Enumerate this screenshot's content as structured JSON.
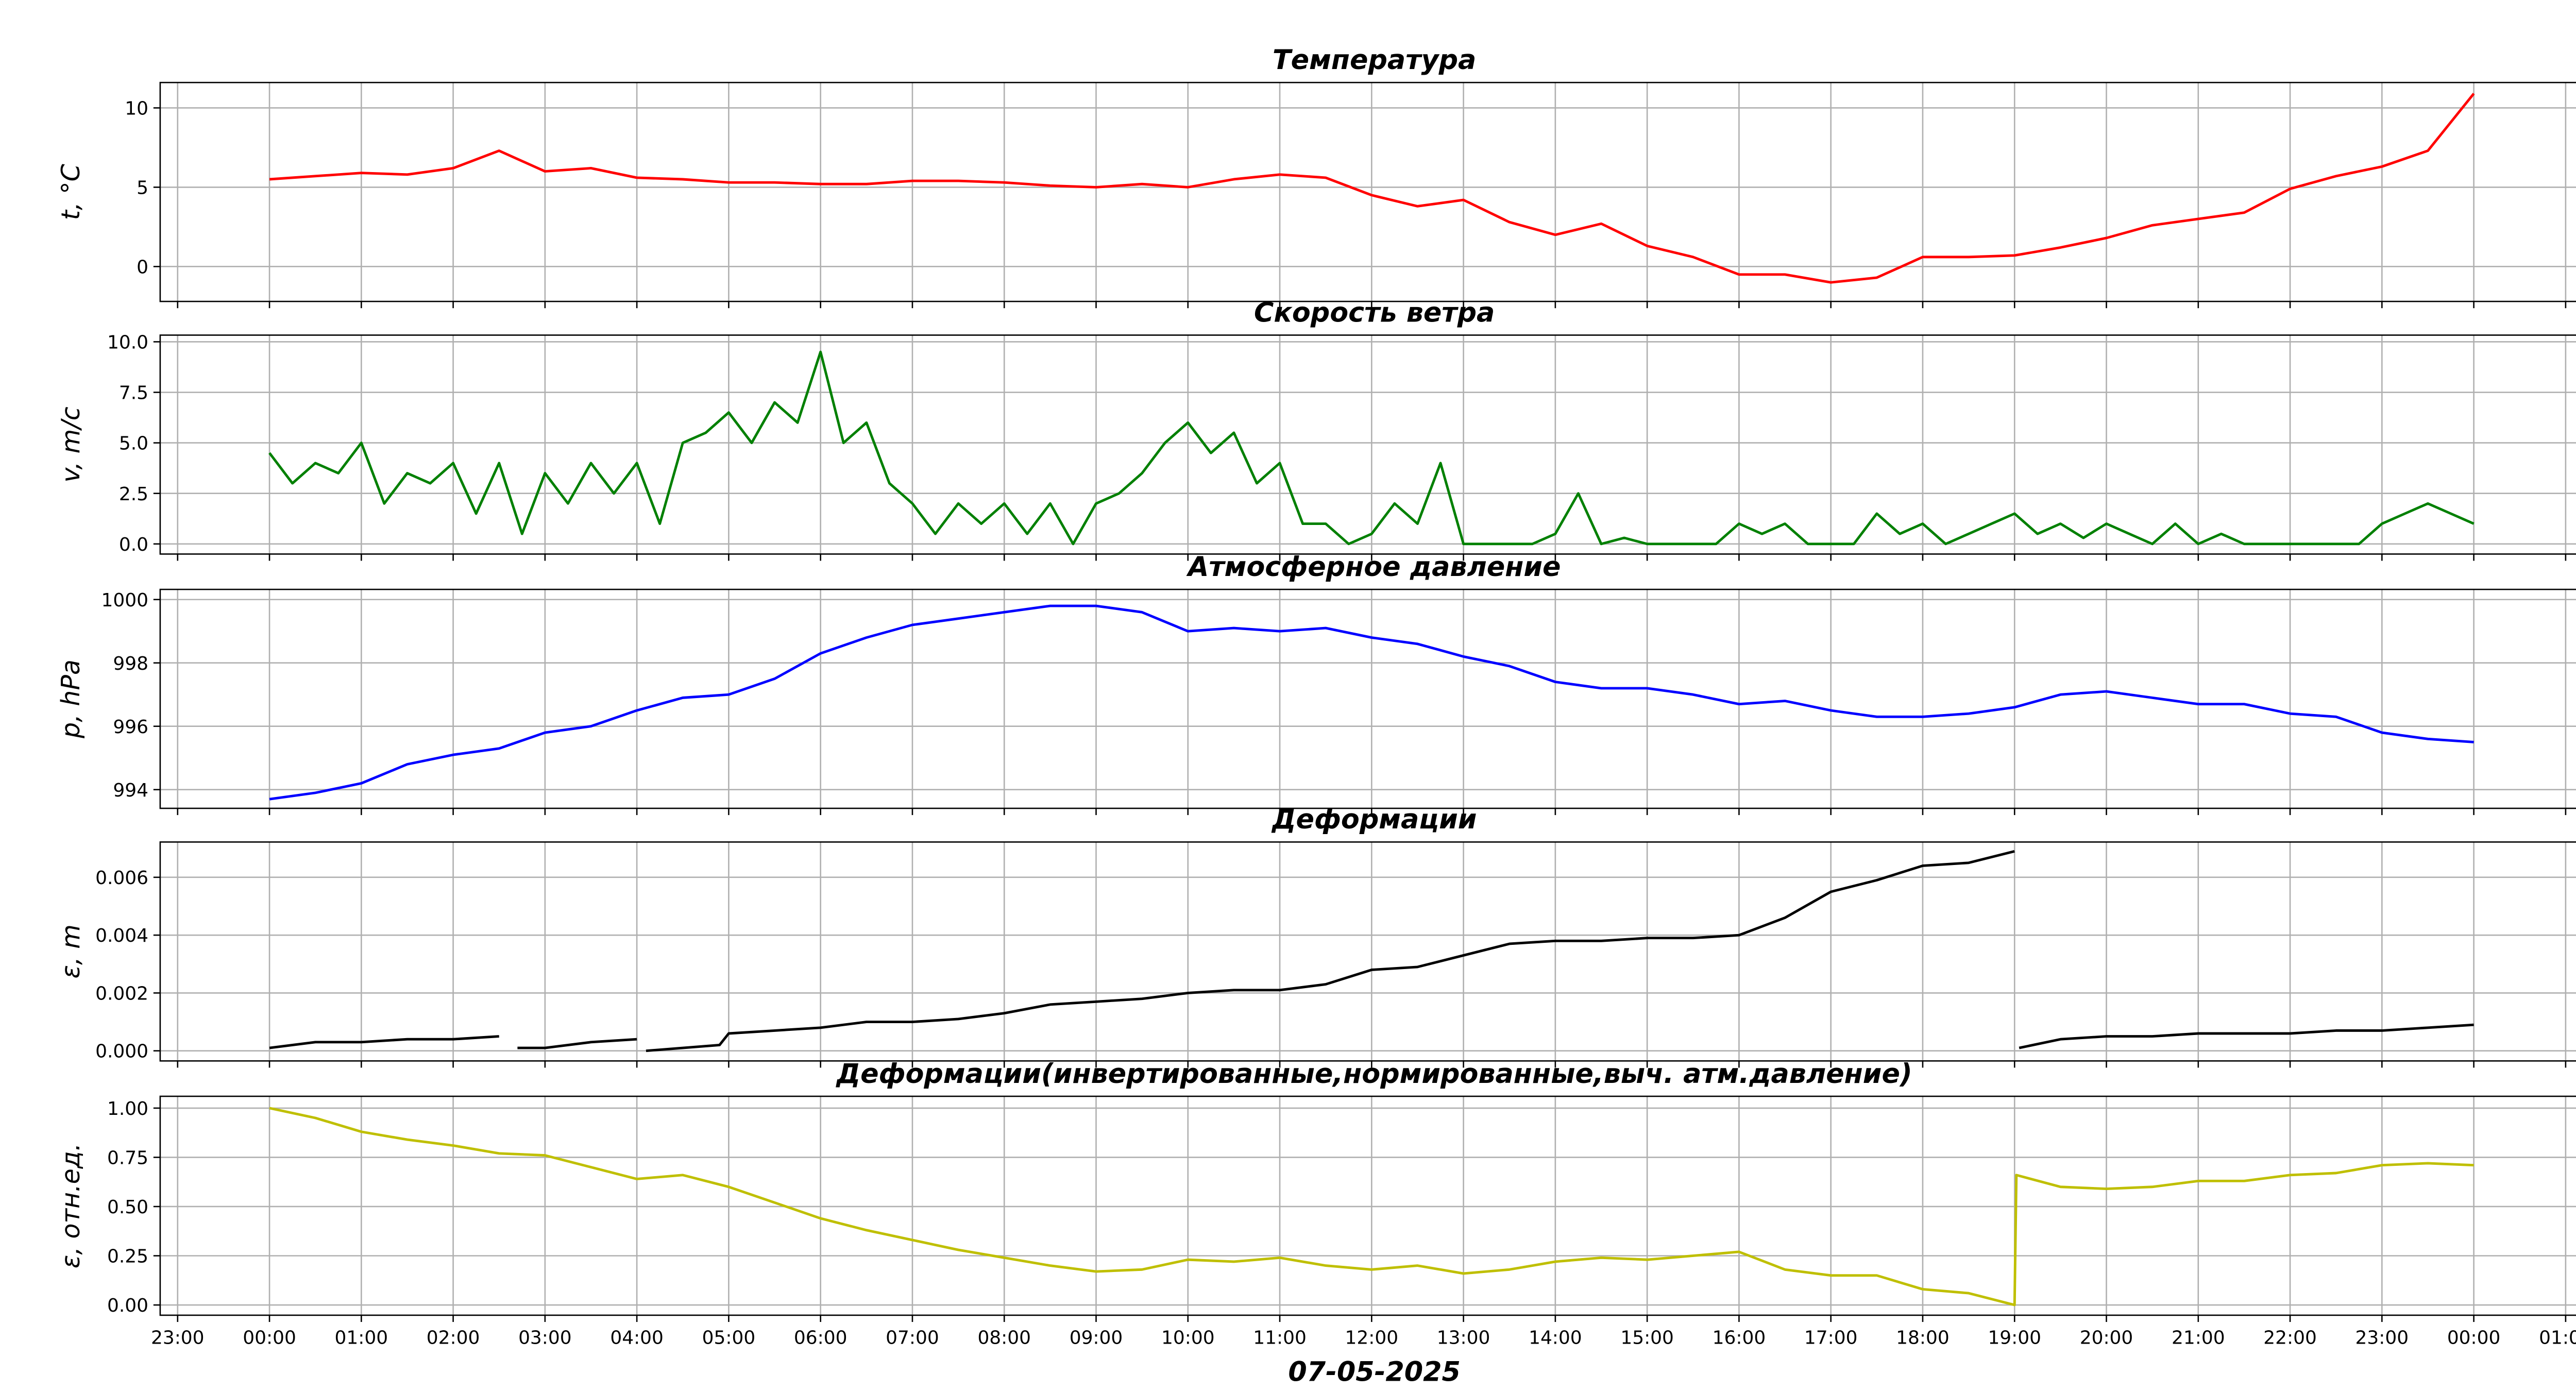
{
  "chart_data": [
    {
      "type": "line",
      "title": "Температура",
      "ylabel": "t, °C",
      "color": "#ff0000",
      "grid": true,
      "ylim": [
        -2.2,
        11.6
      ],
      "yticks": [
        0,
        5,
        10
      ],
      "x": [
        0,
        0.5,
        1,
        1.5,
        2,
        2.5,
        3,
        3.5,
        4,
        4.5,
        5,
        5.5,
        6,
        6.5,
        7,
        7.5,
        8,
        8.5,
        9,
        9.5,
        10,
        10.5,
        11,
        11.5,
        12,
        12.5,
        13,
        13.5,
        14,
        14.5,
        15,
        15.5,
        16,
        16.5,
        17,
        17.5,
        18,
        18.5,
        19,
        19.5,
        20,
        20.5,
        21,
        21.5,
        22,
        22.5,
        23,
        23.5,
        24
      ],
      "values": [
        5.5,
        5.7,
        5.9,
        5.8,
        6.2,
        7.3,
        6.0,
        6.2,
        5.6,
        5.5,
        5.3,
        5.3,
        5.2,
        5.2,
        5.4,
        5.4,
        5.3,
        5.1,
        5.0,
        5.2,
        5.0,
        5.5,
        5.8,
        5.6,
        4.5,
        3.8,
        4.2,
        2.8,
        2.0,
        2.7,
        1.3,
        0.6,
        -0.5,
        -0.5,
        -1.0,
        -0.7,
        0.6,
        0.6,
        0.7,
        1.2,
        1.8,
        2.6,
        3.0,
        3.4,
        4.9,
        5.7,
        6.3,
        7.3,
        10.9
      ]
    },
    {
      "type": "line",
      "title": "Скорость ветра",
      "ylabel": "v, m/c",
      "color": "#008000",
      "grid": true,
      "ylim": [
        -0.5,
        10.33
      ],
      "yticks": [
        {
          "value": 0,
          "label": "0.0"
        },
        2.5,
        {
          "value": 5,
          "label": "5.0"
        },
        7.5,
        {
          "value": 10,
          "label": "10.0"
        }
      ],
      "x": [
        0,
        0.25,
        0.5,
        0.75,
        1,
        1.25,
        1.5,
        1.75,
        2,
        2.25,
        2.5,
        2.75,
        3,
        3.25,
        3.5,
        3.75,
        4,
        4.25,
        4.5,
        4.75,
        5,
        5.25,
        5.5,
        5.75,
        6,
        6.25,
        6.5,
        6.75,
        7,
        7.25,
        7.5,
        7.75,
        8,
        8.25,
        8.5,
        8.75,
        9,
        9.25,
        9.5,
        9.75,
        10,
        10.25,
        10.5,
        10.75,
        11,
        11.25,
        11.5,
        11.75,
        12,
        12.25,
        12.5,
        12.75,
        13,
        13.25,
        13.5,
        13.75,
        14,
        14.25,
        14.5,
        14.75,
        15,
        15.25,
        15.5,
        15.75,
        16,
        16.25,
        16.5,
        16.75,
        17,
        17.25,
        17.5,
        17.75,
        18,
        18.25,
        18.5,
        18.75,
        19,
        19.25,
        19.5,
        19.75,
        20,
        20.25,
        20.5,
        20.75,
        21,
        21.25,
        21.5,
        21.75,
        22,
        22.25,
        22.5,
        22.75,
        23,
        23.25,
        23.5,
        23.75,
        24
      ],
      "values": [
        4.5,
        3,
        4,
        3.5,
        5,
        2,
        3.5,
        3,
        4,
        1.5,
        4,
        0.5,
        3.5,
        2,
        4,
        2.5,
        4,
        1,
        5,
        5.5,
        6.5,
        5,
        7,
        6,
        9.5,
        5,
        6,
        3,
        2,
        0.5,
        2,
        1,
        2,
        0.5,
        2,
        0,
        2,
        2.5,
        3.5,
        5,
        6,
        4.5,
        5.5,
        3,
        4,
        1,
        1,
        0,
        0.5,
        2,
        1,
        4,
        0,
        0,
        0,
        0,
        0.5,
        2.5,
        0,
        0.3,
        0,
        0,
        0,
        0,
        1,
        0.5,
        1,
        0,
        0,
        0,
        1.5,
        0.5,
        1,
        0,
        0.5,
        1,
        1.5,
        0.5,
        1,
        0.3,
        1,
        0.5,
        0,
        1,
        0,
        0.5,
        0,
        0,
        0,
        0,
        0,
        0,
        1,
        1.5,
        2,
        1.5,
        1
      ]
    },
    {
      "type": "line",
      "title": "Атмосферное давление",
      "ylabel": "p, hPa",
      "color": "#0000ff",
      "grid": true,
      "ylim": [
        993.41,
        1000.32
      ],
      "yticks": [
        994,
        996,
        998,
        1000
      ],
      "x": [
        0,
        0.5,
        1,
        1.5,
        2,
        2.5,
        3,
        3.5,
        4,
        4.5,
        5,
        5.5,
        6,
        6.5,
        7,
        7.5,
        8,
        8.5,
        9,
        9.5,
        10,
        10.5,
        11,
        11.5,
        12,
        12.5,
        13,
        13.5,
        14,
        14.5,
        15,
        15.5,
        16,
        16.5,
        17,
        17.5,
        18,
        18.5,
        19,
        19.5,
        20,
        20.5,
        21,
        21.5,
        22,
        22.5,
        23,
        23.5,
        24
      ],
      "values": [
        993.7,
        993.9,
        994.2,
        994.8,
        995.1,
        995.3,
        995.8,
        996.0,
        996.5,
        996.9,
        997.0,
        997.5,
        998.3,
        998.8,
        999.2,
        999.4,
        999.6,
        999.8,
        999.8,
        999.6,
        999.0,
        999.1,
        999.0,
        999.1,
        998.8,
        998.6,
        998.2,
        997.9,
        997.4,
        997.2,
        997.2,
        997.0,
        996.7,
        996.8,
        996.5,
        996.3,
        996.3,
        996.4,
        996.6,
        997.0,
        997.1,
        996.9,
        996.7,
        996.7,
        996.4,
        996.3,
        995.8,
        995.6,
        995.5
      ]
    },
    {
      "type": "line",
      "title": "Деформации",
      "ylabel": "ε, m",
      "color": "#000000",
      "grid": true,
      "ylim": [
        -0.00035,
        0.00722
      ],
      "yticks": [
        {
          "value": 0,
          "label": "0.000"
        },
        0.002,
        0.004,
        0.006
      ],
      "x": [
        0,
        0.5,
        1,
        1.5,
        2,
        2.5,
        2.6,
        2.7,
        3,
        3.5,
        4,
        4.05,
        4.1,
        4.5,
        4.9,
        5,
        5.5,
        6,
        6.5,
        7,
        7.5,
        8,
        8.5,
        9,
        9.5,
        10,
        10.5,
        11,
        11.5,
        12,
        12.5,
        13,
        13.5,
        14,
        14.5,
        15,
        15.5,
        16,
        16.5,
        17,
        17.5,
        18,
        18.5,
        19,
        19.02,
        19.05,
        19.5,
        20,
        20.5,
        21,
        21.5,
        22,
        22.5,
        23,
        23.5,
        24
      ],
      "values": [
        0.0001,
        0.0003,
        0.0003,
        0.0004,
        0.0004,
        0.0005,
        null,
        0.0001,
        0.0001,
        0.0003,
        0.0004,
        null,
        0,
        0.0001,
        0.0002,
        0.0006,
        0.0007,
        0.0008,
        0.001,
        0.001,
        0.0011,
        0.0013,
        0.0016,
        0.0017,
        0.0018,
        0.002,
        0.0021,
        0.0021,
        0.0023,
        0.0028,
        0.0029,
        0.0033,
        0.0037,
        0.0038,
        0.0038,
        0.0039,
        0.0039,
        0.004,
        0.0046,
        0.0055,
        0.0059,
        0.0064,
        0.0065,
        0.0069,
        null,
        0.0001,
        0.0004,
        0.0005,
        0.0005,
        0.0006,
        0.0006,
        0.0006,
        0.0007,
        0.0007,
        0.0008,
        0.0009
      ]
    },
    {
      "type": "line",
      "title": "Деформации(инвертированные,нормированные,выч. атм.давление)",
      "ylabel": "ε, отн.ед.",
      "xlabel": "07-05-2025",
      "color": "#bfbf00",
      "grid": true,
      "ylim": [
        -0.052,
        1.06
      ],
      "yticks": [
        {
          "value": 0,
          "label": "0.00"
        },
        {
          "value": 0.25,
          "label": "0.25"
        },
        {
          "value": 0.5,
          "label": "0.50"
        },
        {
          "value": 0.75,
          "label": "0.75"
        },
        {
          "value": 1,
          "label": "1.00"
        }
      ],
      "xlim": [
        -1.19,
        25.25
      ],
      "xticks": [
        {
          "value": -1,
          "label": "23:00"
        },
        {
          "value": 0,
          "label": "00:00"
        },
        {
          "value": 1,
          "label": "01:00"
        },
        {
          "value": 2,
          "label": "02:00"
        },
        {
          "value": 3,
          "label": "03:00"
        },
        {
          "value": 4,
          "label": "04:00"
        },
        {
          "value": 5,
          "label": "05:00"
        },
        {
          "value": 6,
          "label": "06:00"
        },
        {
          "value": 7,
          "label": "07:00"
        },
        {
          "value": 8,
          "label": "08:00"
        },
        {
          "value": 9,
          "label": "09:00"
        },
        {
          "value": 10,
          "label": "10:00"
        },
        {
          "value": 11,
          "label": "11:00"
        },
        {
          "value": 12,
          "label": "12:00"
        },
        {
          "value": 13,
          "label": "13:00"
        },
        {
          "value": 14,
          "label": "14:00"
        },
        {
          "value": 15,
          "label": "15:00"
        },
        {
          "value": 16,
          "label": "16:00"
        },
        {
          "value": 17,
          "label": "17:00"
        },
        {
          "value": 18,
          "label": "18:00"
        },
        {
          "value": 19,
          "label": "19:00"
        },
        {
          "value": 20,
          "label": "20:00"
        },
        {
          "value": 21,
          "label": "21:00"
        },
        {
          "value": 22,
          "label": "22:00"
        },
        {
          "value": 23,
          "label": "23:00"
        },
        {
          "value": 24,
          "label": "00:00"
        },
        {
          "value": 25,
          "label": "01:00"
        }
      ],
      "x": [
        0,
        0.5,
        1,
        1.5,
        2,
        2.5,
        3,
        3.5,
        4,
        4.5,
        5,
        5.5,
        6,
        6.5,
        7,
        7.5,
        8,
        8.5,
        9,
        9.5,
        10,
        10.5,
        11,
        11.5,
        12,
        12.5,
        13,
        13.5,
        14,
        14.5,
        15,
        15.5,
        16,
        16.5,
        17,
        17.5,
        18,
        18.5,
        19,
        19.02,
        19.5,
        20,
        20.5,
        21,
        21.5,
        22,
        22.5,
        23,
        23.5,
        24
      ],
      "values": [
        1.0,
        0.95,
        0.88,
        0.84,
        0.81,
        0.77,
        0.76,
        0.7,
        0.64,
        0.66,
        0.6,
        0.52,
        0.44,
        0.38,
        0.33,
        0.28,
        0.24,
        0.2,
        0.17,
        0.18,
        0.23,
        0.22,
        0.24,
        0.2,
        0.18,
        0.2,
        0.16,
        0.18,
        0.22,
        0.24,
        0.23,
        0.25,
        0.27,
        0.18,
        0.15,
        0.15,
        0.08,
        0.06,
        0.0,
        0.66,
        0.6,
        0.59,
        0.6,
        0.63,
        0.63,
        0.66,
        0.67,
        0.71,
        0.72,
        0.71
      ]
    }
  ]
}
